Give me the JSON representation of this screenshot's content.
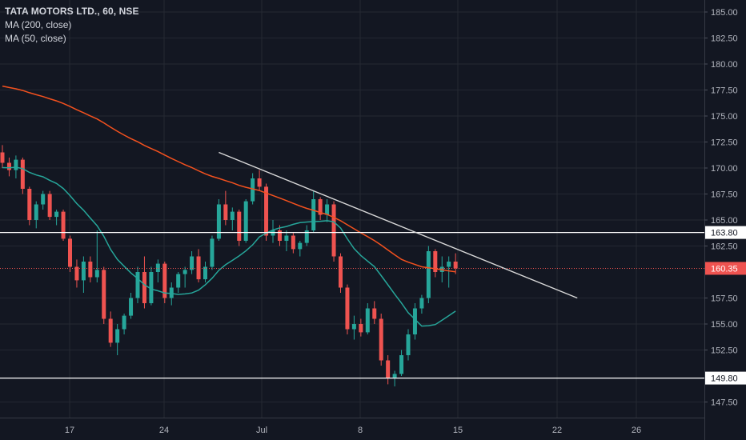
{
  "legend": {
    "ticker": "TATA MOTORS LTD., 60, NSE",
    "ma200": "MA (200, close)",
    "ma50": "MA (50, close)"
  },
  "colors": {
    "background": "#131722",
    "grid": "#242832",
    "up": "#26a69a",
    "down": "#ef5350",
    "ma200": "#f4511e",
    "ma50": "#26a69a",
    "trendline": "#d9d9d9",
    "level": "#ffffff",
    "last_price": "#ef5350"
  },
  "chart_data": {
    "type": "candlestick",
    "y_ticks": [
      "185.00",
      "182.50",
      "180.00",
      "177.50",
      "175.00",
      "172.50",
      "170.00",
      "167.50",
      "165.00",
      "162.50",
      "157.50",
      "155.00",
      "152.50",
      "147.50"
    ],
    "x_ticks": [
      "17",
      "24",
      "Jul",
      "8",
      "15",
      "22",
      "26"
    ],
    "ylim": [
      146,
      186
    ],
    "levels": [
      {
        "label": "163.80",
        "value": 163.8
      },
      {
        "label": "149.80",
        "value": 149.8
      }
    ],
    "last_price": {
      "label": "160.35",
      "value": 160.35
    },
    "trendline": {
      "from_bar": 32,
      "from_value": 171.5,
      "to_bar": 85,
      "to_value": 157.5
    },
    "candles": [
      [
        171.5,
        172.2,
        170.0,
        170.5
      ],
      [
        170.5,
        171.0,
        169.2,
        169.8
      ],
      [
        169.8,
        171.2,
        169.0,
        170.8
      ],
      [
        170.8,
        171.0,
        167.5,
        168.0
      ],
      [
        168.0,
        168.2,
        164.5,
        165.0
      ],
      [
        165.0,
        166.8,
        164.2,
        166.5
      ],
      [
        166.5,
        167.8,
        166.0,
        167.5
      ],
      [
        167.5,
        167.8,
        165.0,
        165.3
      ],
      [
        165.3,
        166.0,
        164.5,
        165.8
      ],
      [
        165.8,
        166.0,
        163.0,
        163.2
      ],
      [
        163.2,
        163.5,
        160.0,
        160.5
      ],
      [
        160.5,
        161.2,
        158.5,
        159.2
      ],
      [
        159.2,
        161.5,
        158.0,
        161.0
      ],
      [
        161.0,
        161.5,
        159.0,
        159.5
      ],
      [
        159.5,
        164.0,
        159.0,
        160.2
      ],
      [
        160.2,
        160.5,
        155.0,
        155.5
      ],
      [
        155.5,
        156.2,
        152.8,
        153.2
      ],
      [
        153.2,
        155.0,
        152.0,
        154.5
      ],
      [
        154.5,
        156.0,
        154.0,
        155.8
      ],
      [
        155.8,
        158.0,
        155.5,
        157.5
      ],
      [
        157.5,
        160.5,
        157.0,
        160.0
      ],
      [
        160.0,
        161.5,
        156.5,
        157.0
      ],
      [
        157.0,
        160.5,
        156.8,
        160.0
      ],
      [
        160.0,
        161.2,
        159.0,
        160.8
      ],
      [
        160.8,
        161.0,
        157.0,
        157.5
      ],
      [
        157.5,
        159.0,
        156.8,
        158.5
      ],
      [
        158.5,
        160.0,
        158.0,
        159.8
      ],
      [
        159.8,
        160.5,
        158.5,
        160.2
      ],
      [
        160.2,
        162.0,
        159.8,
        161.5
      ],
      [
        161.5,
        162.2,
        159.0,
        159.3
      ],
      [
        159.3,
        161.0,
        159.0,
        160.5
      ],
      [
        160.5,
        163.5,
        160.2,
        163.2
      ],
      [
        163.2,
        167.0,
        163.0,
        166.5
      ],
      [
        166.5,
        167.8,
        164.5,
        165.0
      ],
      [
        165.0,
        166.2,
        164.0,
        165.8
      ],
      [
        165.8,
        166.0,
        162.5,
        163.0
      ],
      [
        163.0,
        167.0,
        162.8,
        166.8
      ],
      [
        166.8,
        169.5,
        166.5,
        169.0
      ],
      [
        169.0,
        169.8,
        167.8,
        168.2
      ],
      [
        168.2,
        168.5,
        163.0,
        163.5
      ],
      [
        163.5,
        165.0,
        162.8,
        164.0
      ],
      [
        164.0,
        164.5,
        162.5,
        163.0
      ],
      [
        163.0,
        164.0,
        162.0,
        163.5
      ],
      [
        163.5,
        163.8,
        161.8,
        162.2
      ],
      [
        162.2,
        163.0,
        161.5,
        162.8
      ],
      [
        162.8,
        164.5,
        162.5,
        164.0
      ],
      [
        164.0,
        167.8,
        163.8,
        167.0
      ],
      [
        167.0,
        167.2,
        165.0,
        165.5
      ],
      [
        165.5,
        167.0,
        164.8,
        166.5
      ],
      [
        166.5,
        166.8,
        161.0,
        161.5
      ],
      [
        161.5,
        161.8,
        158.0,
        158.5
      ],
      [
        158.5,
        158.8,
        154.0,
        154.5
      ],
      [
        154.5,
        155.8,
        153.5,
        155.0
      ],
      [
        155.0,
        155.5,
        153.8,
        154.2
      ],
      [
        154.2,
        157.0,
        154.0,
        156.5
      ],
      [
        156.5,
        157.2,
        155.0,
        155.5
      ],
      [
        155.5,
        156.0,
        151.0,
        151.5
      ],
      [
        151.5,
        152.0,
        149.2,
        149.8
      ],
      [
        149.8,
        150.5,
        149.0,
        150.2
      ],
      [
        150.2,
        152.5,
        150.0,
        152.0
      ],
      [
        152.0,
        154.5,
        151.5,
        154.0
      ],
      [
        154.0,
        157.0,
        153.5,
        156.5
      ],
      [
        156.5,
        157.8,
        156.0,
        157.5
      ],
      [
        157.5,
        162.5,
        157.0,
        162.0
      ],
      [
        162.0,
        162.2,
        159.5,
        160.0
      ],
      [
        160.0,
        161.5,
        159.0,
        160.5
      ],
      [
        160.5,
        161.5,
        158.5,
        161.0
      ],
      [
        161.0,
        161.8,
        159.8,
        160.35
      ]
    ]
  }
}
